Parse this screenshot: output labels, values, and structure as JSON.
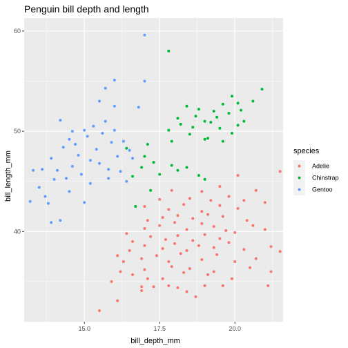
{
  "chart_data": {
    "type": "scatter",
    "title": "Penguin bill depth and length",
    "xlabel": "bill_depth_mm",
    "ylabel": "bill_length_mm",
    "xlim": [
      13.0,
      21.6
    ],
    "ylim": [
      31.0,
      61.3
    ],
    "x_ticks": [
      15.0,
      17.5,
      20.0
    ],
    "x_tick_labels": [
      "15.0",
      "17.5",
      "20.0"
    ],
    "y_ticks": [
      40,
      50,
      60
    ],
    "y_tick_labels": [
      "40",
      "50",
      "60"
    ],
    "grid": true,
    "background": "#ebebeb",
    "legend": {
      "title": "species",
      "position": "right"
    },
    "series": [
      {
        "name": "Adelie",
        "color": "#f8766d",
        "points": [
          [
            15.5,
            32.1
          ],
          [
            16.1,
            33.1
          ],
          [
            16.9,
            34.1
          ],
          [
            17.3,
            34.5
          ],
          [
            17.8,
            34.6
          ],
          [
            18.1,
            34.4
          ],
          [
            18.4,
            34.0
          ],
          [
            19.0,
            34.6
          ],
          [
            19.6,
            34.6
          ],
          [
            21.1,
            34.6
          ],
          [
            16.9,
            34.5
          ],
          [
            18.7,
            33.5
          ],
          [
            15.9,
            35.0
          ],
          [
            16.6,
            35.7
          ],
          [
            17.1,
            35.3
          ],
          [
            17.6,
            35.3
          ],
          [
            18.3,
            35.9
          ],
          [
            19.1,
            35.7
          ],
          [
            19.9,
            35.3
          ],
          [
            16.2,
            36.0
          ],
          [
            17.0,
            36.2
          ],
          [
            17.9,
            36.5
          ],
          [
            18.5,
            36.3
          ],
          [
            19.3,
            36.0
          ],
          [
            20.5,
            36.4
          ],
          [
            21.2,
            36.0
          ],
          [
            16.3,
            37.0
          ],
          [
            16.9,
            37.3
          ],
          [
            17.4,
            37.6
          ],
          [
            17.8,
            37.0
          ],
          [
            18.2,
            37.8
          ],
          [
            18.9,
            37.2
          ],
          [
            19.4,
            37.7
          ],
          [
            20.0,
            37.0
          ],
          [
            20.7,
            37.3
          ],
          [
            16.5,
            38.1
          ],
          [
            17.0,
            38.6
          ],
          [
            17.6,
            38.3
          ],
          [
            18.0,
            38.8
          ],
          [
            18.4,
            38.1
          ],
          [
            18.8,
            38.6
          ],
          [
            19.3,
            38.4
          ],
          [
            19.8,
            38.9
          ],
          [
            20.3,
            38.2
          ],
          [
            16.6,
            39.0
          ],
          [
            17.2,
            39.5
          ],
          [
            17.7,
            39.2
          ],
          [
            18.1,
            39.6
          ],
          [
            18.6,
            39.1
          ],
          [
            19.0,
            39.7
          ],
          [
            19.5,
            39.3
          ],
          [
            20.0,
            39.9
          ],
          [
            21.2,
            38.5
          ],
          [
            21.5,
            38.0
          ],
          [
            17.0,
            40.3
          ],
          [
            17.5,
            40.6
          ],
          [
            18.0,
            40.9
          ],
          [
            18.4,
            40.2
          ],
          [
            18.9,
            40.8
          ],
          [
            19.3,
            40.5
          ],
          [
            19.7,
            40.1
          ],
          [
            20.6,
            40.6
          ],
          [
            21.0,
            40.2
          ],
          [
            17.1,
            41.1
          ],
          [
            17.6,
            41.4
          ],
          [
            18.1,
            41.6
          ],
          [
            18.6,
            41.3
          ],
          [
            19.1,
            41.7
          ],
          [
            19.6,
            41.5
          ],
          [
            20.4,
            41.1
          ],
          [
            17.0,
            42.5
          ],
          [
            17.8,
            42.2
          ],
          [
            18.3,
            42.7
          ],
          [
            18.9,
            42.0
          ],
          [
            19.5,
            42.6
          ],
          [
            20.1,
            42.3
          ],
          [
            17.5,
            43.2
          ],
          [
            18.5,
            43.3
          ],
          [
            19.2,
            43.1
          ],
          [
            19.8,
            43.5
          ],
          [
            20.3,
            43.1
          ],
          [
            21.0,
            42.9
          ],
          [
            17.9,
            44.1
          ],
          [
            18.9,
            44.0
          ],
          [
            19.5,
            44.5
          ],
          [
            20.7,
            44.1
          ],
          [
            20.1,
            45.6
          ],
          [
            21.5,
            46.0
          ],
          [
            16.4,
            39.8
          ],
          [
            16.1,
            37.6
          ]
        ]
      },
      {
        "name": "Chinstrap",
        "color": "#00ba38",
        "points": [
          [
            16.7,
            42.5
          ],
          [
            17.2,
            44.1
          ],
          [
            16.6,
            45.5
          ],
          [
            17.5,
            45.7
          ],
          [
            18.1,
            46.1
          ],
          [
            16.9,
            46.4
          ],
          [
            17.3,
            46.9
          ],
          [
            17.9,
            46.6
          ],
          [
            18.4,
            46.4
          ],
          [
            19.0,
            45.2
          ],
          [
            18.8,
            45.6
          ],
          [
            17.0,
            47.5
          ],
          [
            16.4,
            48.3
          ],
          [
            17.1,
            48.7
          ],
          [
            17.9,
            49.0
          ],
          [
            18.5,
            49.7
          ],
          [
            19.1,
            49.3
          ],
          [
            19.6,
            49.0
          ],
          [
            19.9,
            49.8
          ],
          [
            17.8,
            50.1
          ],
          [
            18.2,
            50.7
          ],
          [
            18.6,
            50.4
          ],
          [
            19.2,
            50.9
          ],
          [
            19.5,
            50.3
          ],
          [
            20.1,
            50.6
          ],
          [
            18.1,
            51.3
          ],
          [
            18.7,
            51.5
          ],
          [
            19.0,
            51.0
          ],
          [
            19.4,
            51.4
          ],
          [
            19.8,
            51.8
          ],
          [
            18.8,
            52.2
          ],
          [
            19.3,
            52.0
          ],
          [
            19.6,
            52.7
          ],
          [
            20.2,
            52.1
          ],
          [
            20.3,
            51.0
          ],
          [
            18.4,
            52.5
          ],
          [
            19.9,
            53.5
          ],
          [
            20.6,
            53.0
          ],
          [
            20.1,
            52.8
          ],
          [
            20.9,
            54.2
          ],
          [
            17.8,
            58.0
          ],
          [
            19.0,
            49.2
          ]
        ]
      },
      {
        "name": "Gentoo",
        "color": "#619cff",
        "points": [
          [
            13.2,
            43.0
          ],
          [
            13.7,
            43.5
          ],
          [
            13.5,
            44.4
          ],
          [
            13.8,
            42.8
          ],
          [
            14.0,
            45.2
          ],
          [
            13.6,
            46.2
          ],
          [
            13.9,
            47.3
          ],
          [
            14.1,
            46.1
          ],
          [
            14.3,
            48.4
          ],
          [
            14.4,
            45.3
          ],
          [
            14.6,
            46.5
          ],
          [
            14.5,
            49.2
          ],
          [
            14.8,
            47.6
          ],
          [
            15.0,
            50.1
          ],
          [
            14.7,
            48.7
          ],
          [
            14.9,
            45.7
          ],
          [
            15.2,
            47.1
          ],
          [
            15.1,
            49.5
          ],
          [
            15.3,
            50.5
          ],
          [
            15.5,
            46.8
          ],
          [
            15.4,
            48.2
          ],
          [
            15.6,
            49.8
          ],
          [
            15.7,
            51.0
          ],
          [
            15.8,
            46.2
          ],
          [
            15.9,
            48.9
          ],
          [
            16.0,
            50.1
          ],
          [
            16.1,
            47.5
          ],
          [
            16.3,
            49.0
          ],
          [
            16.5,
            48.1
          ],
          [
            16.2,
            46.0
          ],
          [
            15.0,
            42.9
          ],
          [
            14.2,
            41.1
          ],
          [
            13.9,
            40.9
          ],
          [
            14.5,
            44.0
          ],
          [
            15.2,
            44.8
          ],
          [
            16.6,
            47.3
          ],
          [
            16.0,
            52.5
          ],
          [
            15.7,
            54.3
          ],
          [
            15.5,
            53.0
          ],
          [
            17.0,
            55.0
          ],
          [
            17.0,
            59.6
          ],
          [
            16.0,
            55.1
          ],
          [
            14.2,
            51.1
          ],
          [
            16.4,
            45.0
          ],
          [
            13.3,
            46.1
          ],
          [
            14.6,
            50.0
          ],
          [
            15.8,
            45.3
          ],
          [
            16.8,
            52.4
          ]
        ]
      }
    ]
  }
}
